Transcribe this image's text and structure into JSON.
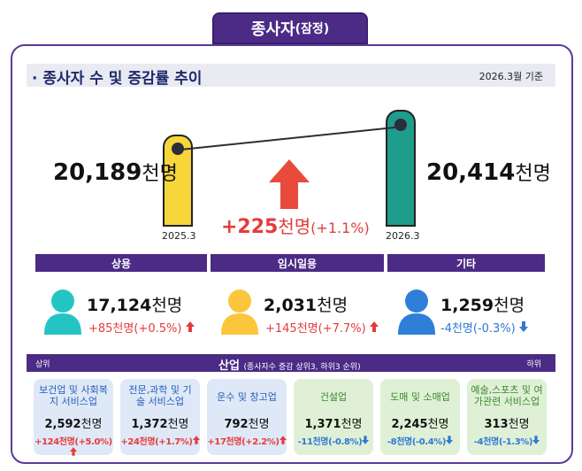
{
  "header": {
    "title": "종사자",
    "title_suffix": "(잠정)"
  },
  "section": {
    "title": "· 종사자 수 및 증감률 추이",
    "base_date": "2026.3월 기준"
  },
  "trend": {
    "left": {
      "label": "2025.3",
      "value": "20,189",
      "unit": "천명",
      "color": "#f7d63c"
    },
    "right": {
      "label": "2026.3",
      "value": "20,414",
      "unit": "천명",
      "color": "#1e9c8c"
    },
    "change": {
      "value": "+225",
      "unit": "천명",
      "pct": "(+1.1%)",
      "color": "#e53b3b"
    }
  },
  "categories": [
    {
      "name": "상용",
      "value": "17,124",
      "unit": "천명",
      "change": "+85천명(+0.5%)",
      "direction": "up",
      "icon_color": "#25c4c4"
    },
    {
      "name": "임시일용",
      "value": "2,031",
      "unit": "천명",
      "change": "+145천명(+7.7%)",
      "direction": "up",
      "icon_color": "#fbc63c"
    },
    {
      "name": "기타",
      "value": "1,259",
      "unit": "천명",
      "change": "-4천명(-0.3%)",
      "direction": "down",
      "icon_color": "#2f7fd8"
    }
  ],
  "industry": {
    "title": "산업",
    "subtitle": "(종사자수 증감 상위3, 하위3 순위)",
    "rank_left": "상위",
    "rank_right": "하위",
    "items": [
      {
        "name": "보건업 및 사회복지 서비스업",
        "value": "2,592",
        "unit": "천명",
        "change": "+124천명(+5.0%)",
        "direction": "up"
      },
      {
        "name": "전문,과학 및 기술 서비스업",
        "value": "1,372",
        "unit": "천명",
        "change": "+24천명(+1.7%)",
        "direction": "up"
      },
      {
        "name": "운수 및 창고업",
        "value": "792",
        "unit": "천명",
        "change": "+17천명(+2.2%)",
        "direction": "up"
      },
      {
        "name": "건설업",
        "value": "1,371",
        "unit": "천명",
        "change": "-11천명(-0.8%)",
        "direction": "down"
      },
      {
        "name": "도매 및 소매업",
        "value": "2,245",
        "unit": "천명",
        "change": "-8천명(-0.4%)",
        "direction": "down"
      },
      {
        "name": "예술,스포츠 및 여가관련 서비스업",
        "value": "313",
        "unit": "천명",
        "change": "-4천명(-1.3%)",
        "direction": "down"
      }
    ]
  }
}
